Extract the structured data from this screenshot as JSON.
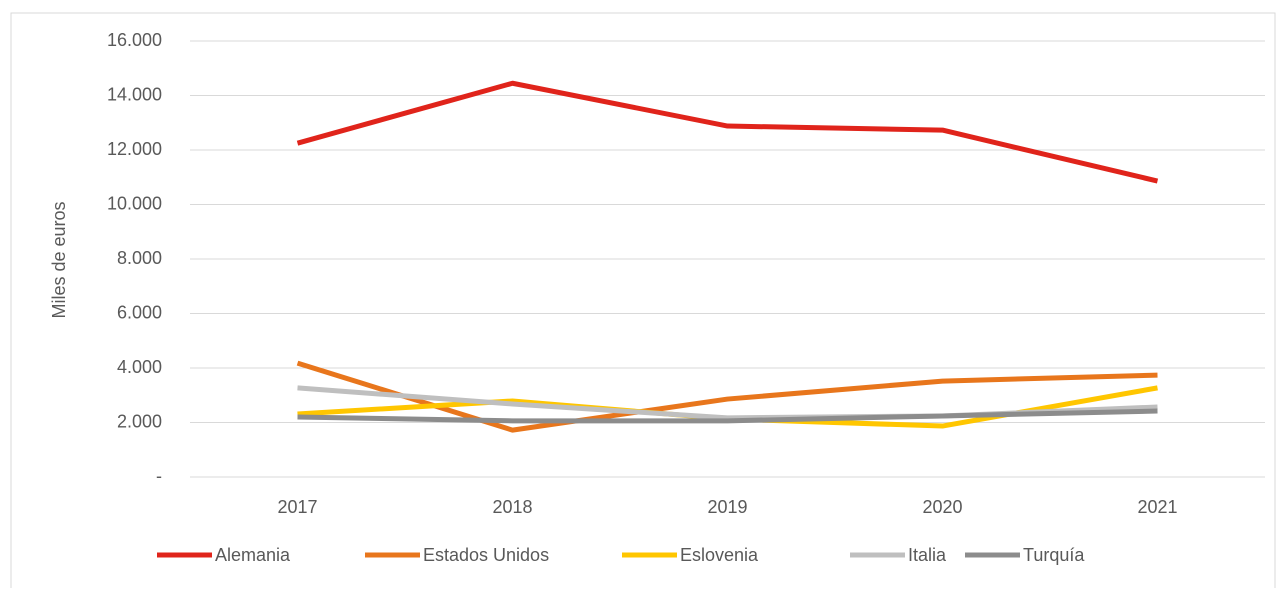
{
  "chart_data": {
    "type": "line",
    "y_label": "Miles de euros",
    "x": [
      "2017",
      "2018",
      "2019",
      "2020",
      "2021"
    ],
    "series": [
      {
        "name": "Alemania",
        "color": "#e0241b",
        "values": [
          12250,
          14450,
          12880,
          12730,
          10860
        ]
      },
      {
        "name": "Estados Unidos",
        "color": "#e8761c",
        "values": [
          4180,
          1720,
          2860,
          3520,
          3740
        ]
      },
      {
        "name": "Eslovenia",
        "color": "#ffc600",
        "values": [
          2310,
          2790,
          2130,
          1870,
          3270
        ]
      },
      {
        "name": "Italia",
        "color": "#bfbfbf",
        "values": [
          3270,
          2680,
          2170,
          2240,
          2570
        ]
      },
      {
        "name": "Turquía",
        "color": "#8c8c8c",
        "values": [
          2200,
          2060,
          2060,
          2240,
          2420
        ]
      }
    ],
    "ylim": [
      0,
      16000
    ],
    "yticks": [
      {
        "value": 0,
        "label": "-"
      },
      {
        "value": 2000,
        "label": "2.000"
      },
      {
        "value": 4000,
        "label": "4.000"
      },
      {
        "value": 6000,
        "label": "6.000"
      },
      {
        "value": 8000,
        "label": "8.000"
      },
      {
        "value": 10000,
        "label": "10.000"
      },
      {
        "value": 12000,
        "label": "12.000"
      },
      {
        "value": 14000,
        "label": "14.000"
      },
      {
        "value": 16000,
        "label": "16.000"
      }
    ],
    "grid": true,
    "legend": "bottom"
  }
}
